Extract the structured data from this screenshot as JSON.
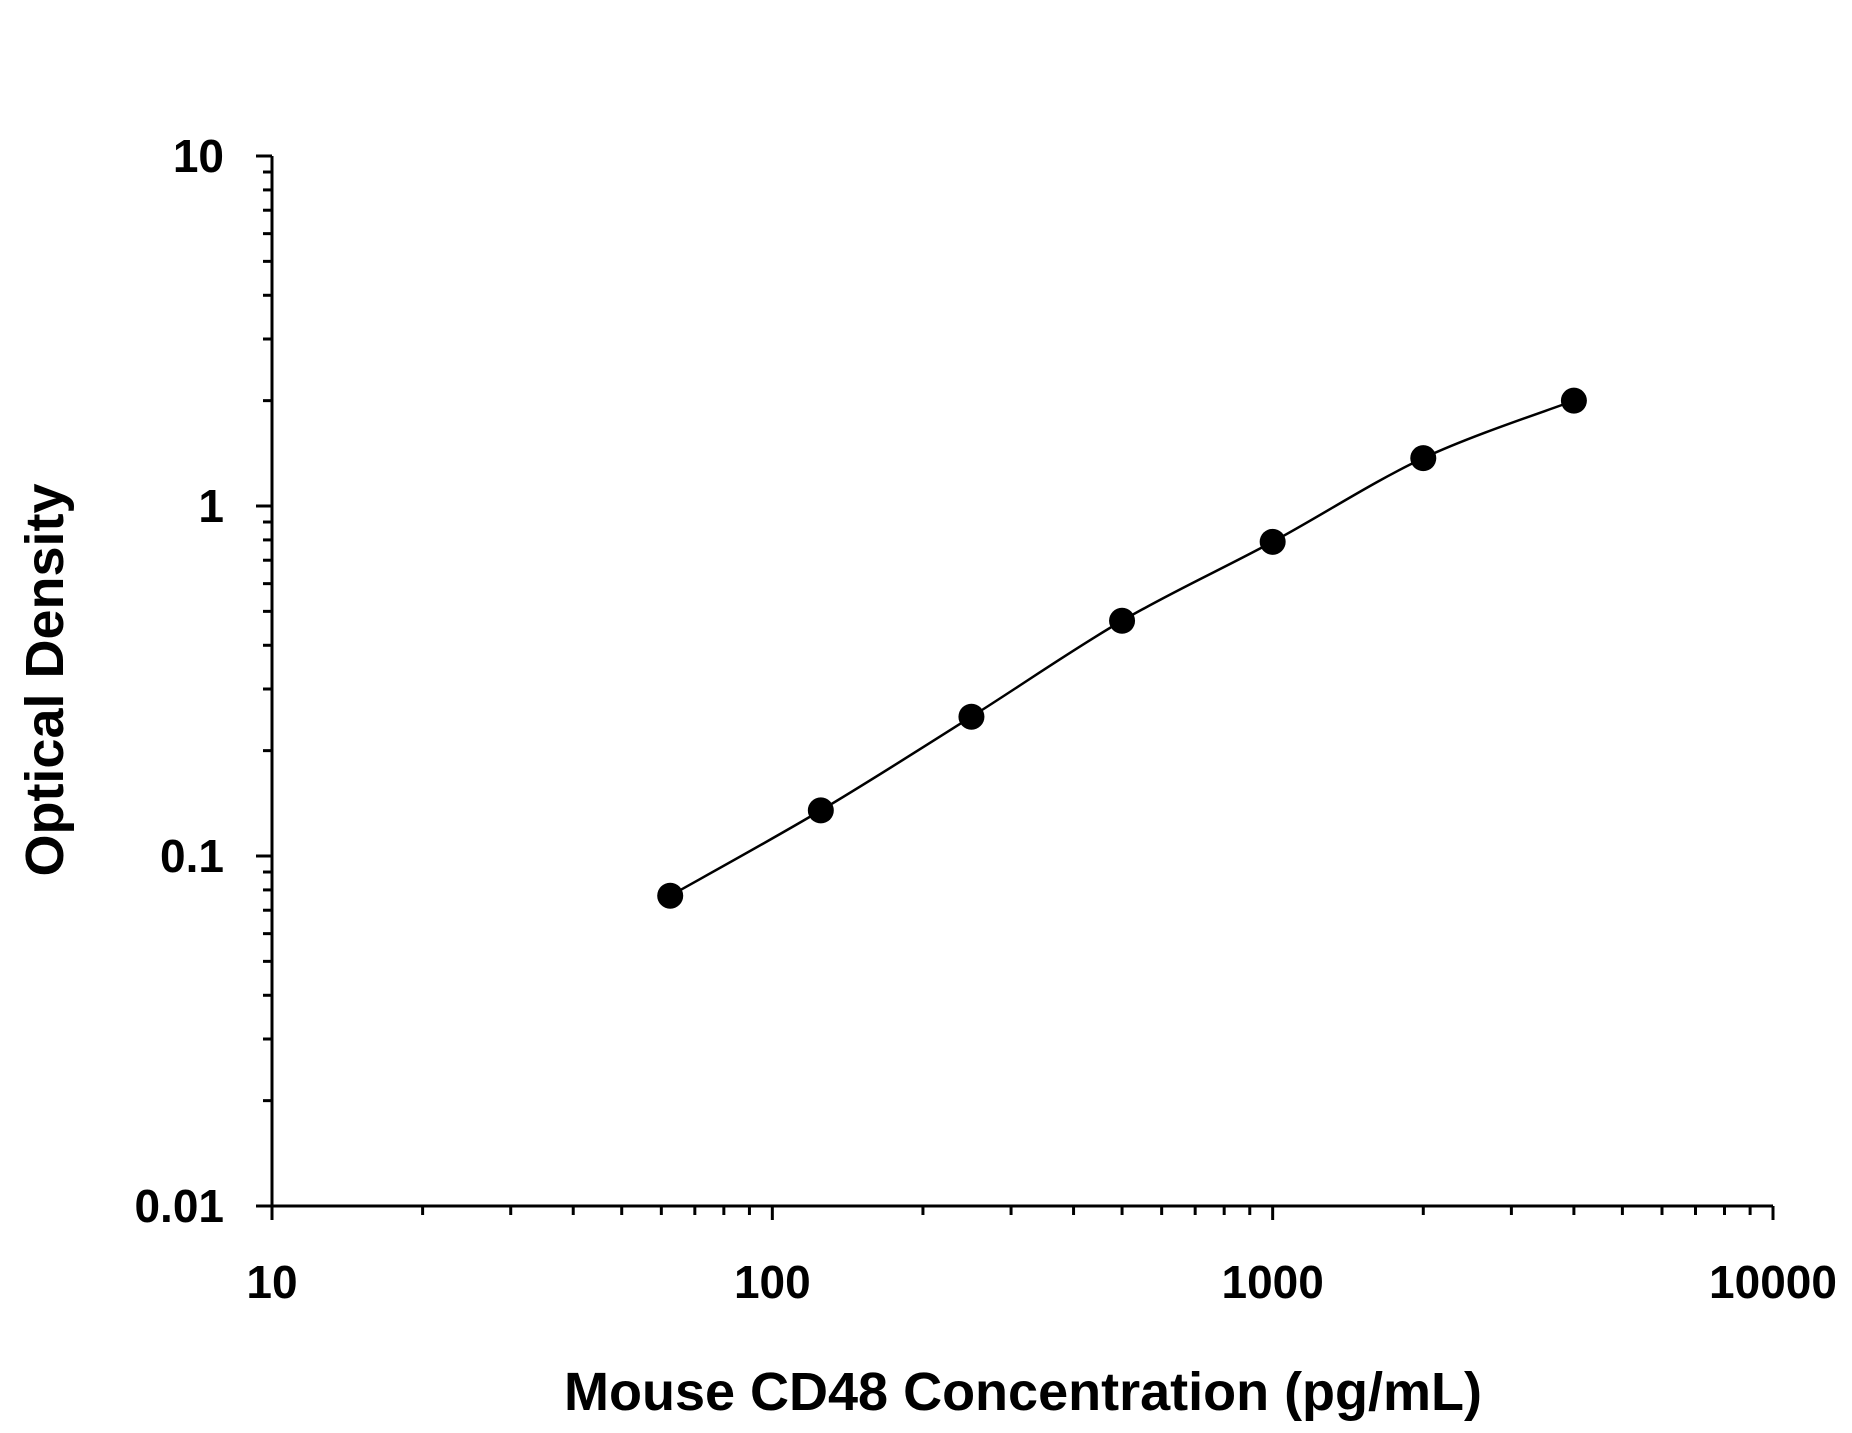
{
  "chart_data": {
    "type": "scatter",
    "title": "",
    "xlabel": "Mouse CD48 Concentration (pg/mL)",
    "ylabel": "Optical Density",
    "xscale": "log",
    "yscale": "log",
    "xlim": [
      10,
      10000
    ],
    "ylim": [
      0.01,
      10
    ],
    "grid": false,
    "legend": "none",
    "x_tick_labels": [
      "10",
      "100",
      "1000",
      "10000"
    ],
    "y_tick_labels": [
      "0.01",
      "0.1",
      "1",
      "10"
    ],
    "x_ticks": [
      10,
      100,
      1000,
      10000
    ],
    "y_ticks": [
      0.01,
      0.1,
      1,
      10
    ],
    "series": [
      {
        "x": [
          62.5,
          125,
          250,
          500,
          1000,
          2000,
          4000
        ],
        "y": [
          0.077,
          0.135,
          0.25,
          0.47,
          0.79,
          1.37,
          2.0
        ],
        "fit_line": true
      }
    ],
    "colors": {
      "marker": "#000000",
      "line": "#000000",
      "axis": "#000000"
    }
  }
}
